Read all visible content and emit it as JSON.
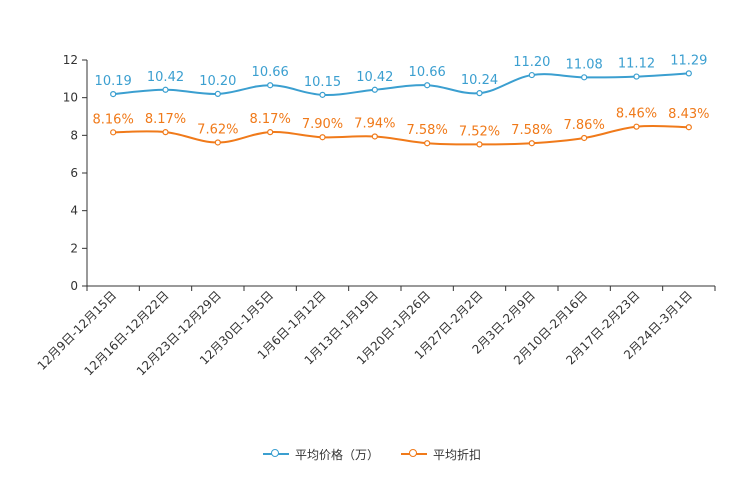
{
  "chart_data": {
    "type": "line",
    "title": "",
    "xlabel": "",
    "ylabel": "",
    "ylim": [
      0,
      12
    ],
    "yticks": [
      0,
      2,
      4,
      6,
      8,
      10,
      12
    ],
    "categories": [
      "12月9日-12月15日",
      "12月16日-12月22日",
      "12月23日-12月29日",
      "12月30日-1月5日",
      "1月6日-1月12日",
      "1月13日-1月19日",
      "1月20日-1月26日",
      "1月27日-2月2日",
      "2月3日-2月9日",
      "2月10日-2月16日",
      "2月17日-2月23日",
      "2月24日-3月1日"
    ],
    "series": [
      {
        "name": "平均价格（万）",
        "color": "#3b9fd0",
        "values": [
          10.19,
          10.42,
          10.2,
          10.66,
          10.15,
          10.42,
          10.66,
          10.24,
          11.2,
          11.08,
          11.12,
          11.29
        ],
        "labels": [
          "10.19",
          "10.42",
          "10.20",
          "10.66",
          "10.15",
          "10.42",
          "10.66",
          "10.24",
          "11.20",
          "11.08",
          "11.12",
          "11.29"
        ]
      },
      {
        "name": "平均折扣",
        "color": "#f07a1a",
        "values": [
          8.16,
          8.17,
          7.62,
          8.17,
          7.9,
          7.94,
          7.58,
          7.52,
          7.58,
          7.86,
          8.46,
          8.43
        ],
        "labels": [
          "8.16%",
          "8.17%",
          "7.62%",
          "8.17%",
          "7.90%",
          "7.94%",
          "7.58%",
          "7.52%",
          "7.58%",
          "7.86%",
          "8.46%",
          "8.43%"
        ]
      }
    ],
    "legend_position": "bottom",
    "grid": false
  }
}
